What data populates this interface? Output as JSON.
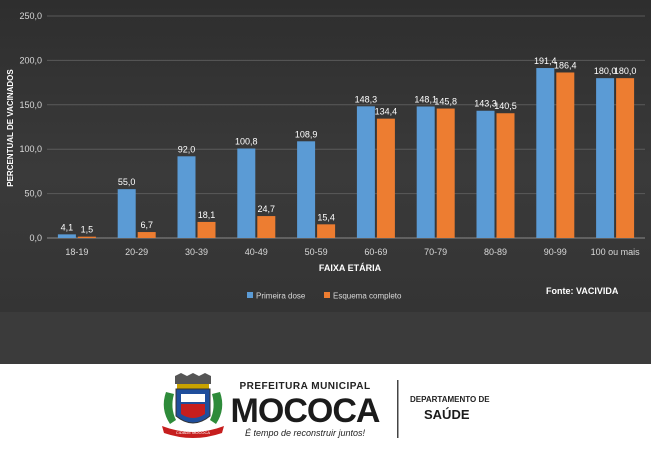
{
  "chart_data": {
    "type": "bar",
    "categories": [
      "18-19",
      "20-29",
      "30-39",
      "40-49",
      "50-59",
      "60-69",
      "70-79",
      "80-89",
      "90-99",
      "100 ou mais"
    ],
    "series": [
      {
        "name": "Primeira dose",
        "color": "#5b9bd5",
        "values": [
          4.1,
          55.0,
          92.0,
          100.8,
          108.9,
          148.3,
          148.1,
          143.3,
          191.4,
          180.0
        ],
        "labels": [
          "4,1",
          "55,0",
          "92,0",
          "100,8",
          "108,9",
          "148,3",
          "148,1",
          "143,3",
          "191,4",
          "180,0"
        ]
      },
      {
        "name": "Esquema completo",
        "color": "#ed7d31",
        "values": [
          1.5,
          6.7,
          18.1,
          24.7,
          15.4,
          134.4,
          145.8,
          140.5,
          186.4,
          180.0
        ],
        "labels": [
          "1,5",
          "6,7",
          "18,1",
          "24,7",
          "15,4",
          "134,4",
          "145,8",
          "140,5",
          "186,4",
          "180,0"
        ]
      }
    ],
    "yticks": [
      "0,0",
      "50,0",
      "100,0",
      "150,0",
      "200,0",
      "250,0"
    ],
    "ylim": [
      0,
      250
    ],
    "xlabel": "FAIXA ETÁRIA",
    "ylabel": "PERCENTUAL DE VACINADOS",
    "legend_position": "bottom",
    "source": "Fonte: VACIVIDA",
    "grid": true
  },
  "footer": {
    "top_line": "PREFEITURA MUNICIPAL",
    "city": "MOCOCA",
    "slogan": "É tempo de reconstruir juntos!",
    "dept_line1": "DEPARTAMENTO DE",
    "dept_line2": "SAÚDE",
    "crest_ribbon": "CIDADE MOCOCA"
  }
}
